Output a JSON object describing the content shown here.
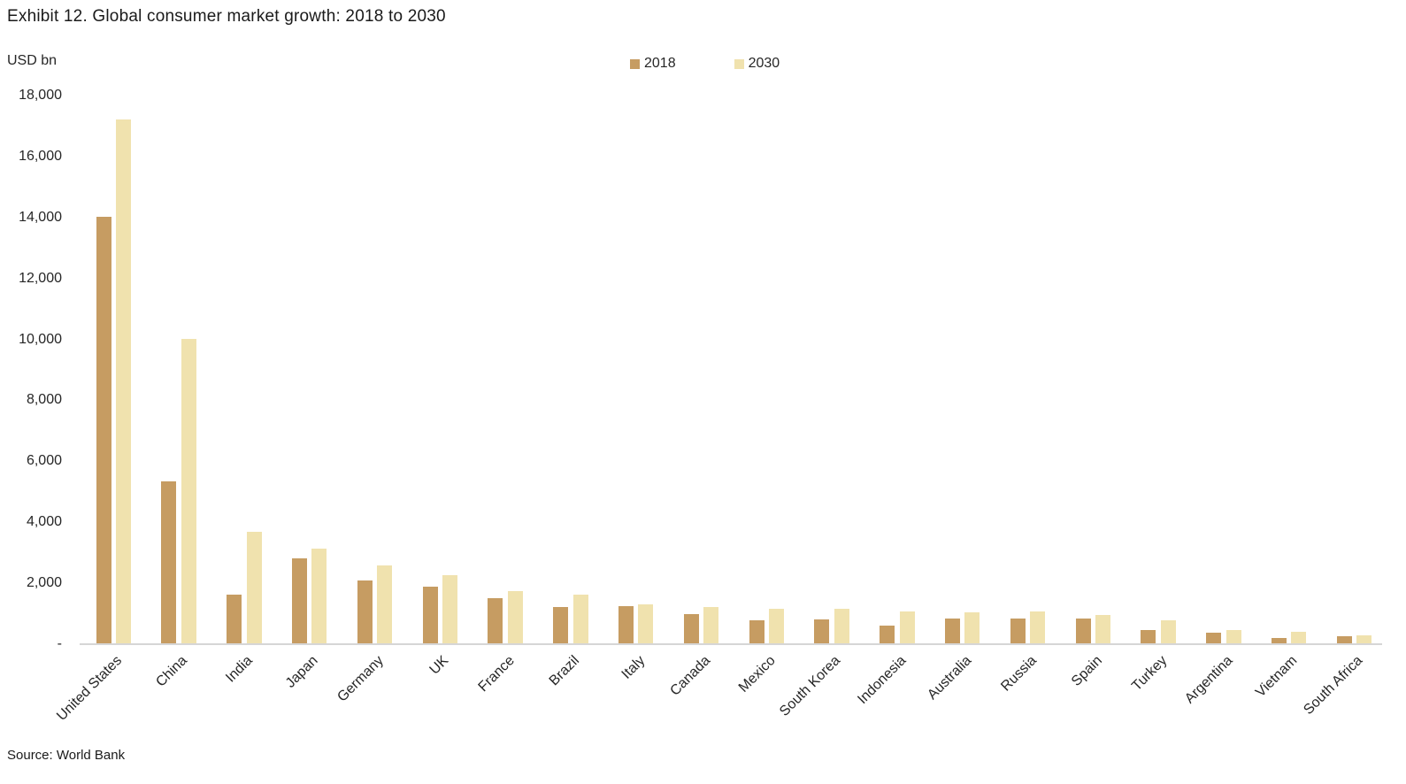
{
  "title": "Exhibit 12. Global consumer market growth: 2018 to 2030",
  "y_axis": {
    "unit_label": "USD bn",
    "ticks": [
      {
        "label": "18,000",
        "value": 18000
      },
      {
        "label": "16,000",
        "value": 16000
      },
      {
        "label": "14,000",
        "value": 14000
      },
      {
        "label": "12,000",
        "value": 12000
      },
      {
        "label": "10,000",
        "value": 10000
      },
      {
        "label": "8,000",
        "value": 8000
      },
      {
        "label": "6,000",
        "value": 6000
      },
      {
        "label": "4,000",
        "value": 4000
      },
      {
        "label": "2,000",
        "value": 2000
      },
      {
        "label": "-",
        "value": 0
      }
    ]
  },
  "legend": [
    {
      "label": "2018",
      "color": "#C69C62"
    },
    {
      "label": "2030",
      "color": "#F0E2AE"
    }
  ],
  "source": "Source: World Bank",
  "colors": {
    "bar_2018": "#C69C62",
    "bar_2030": "#F0E2AE",
    "axis_line": "#D6D6D6",
    "text": "#262626"
  },
  "chart_data": {
    "type": "bar",
    "title": "Exhibit 12. Global consumer market growth: 2018 to 2030",
    "xlabel": "",
    "ylabel": "USD bn",
    "ylim": [
      0,
      18000
    ],
    "y_tick_interval": 2000,
    "grid": false,
    "legend_position": "top-center",
    "categories": [
      "United States",
      "China",
      "India",
      "Japan",
      "Germany",
      "UK",
      "France",
      "Brazil",
      "Italy",
      "Canada",
      "Mexico",
      "South Korea",
      "Indonesia",
      "Australia",
      "Russia",
      "Spain",
      "Turkey",
      "Argentina",
      "Vietnam",
      "South Africa"
    ],
    "series": [
      {
        "name": "2018",
        "color": "#C69C62",
        "values": [
          14000,
          5300,
          1600,
          2800,
          2050,
          1850,
          1480,
          1180,
          1210,
          960,
          770,
          780,
          590,
          810,
          800,
          810,
          430,
          340,
          180,
          220
        ]
      },
      {
        "name": "2030",
        "color": "#F0E2AE",
        "values": [
          17200,
          10000,
          3650,
          3100,
          2550,
          2230,
          1720,
          1590,
          1290,
          1190,
          1120,
          1130,
          1060,
          1030,
          1040,
          920,
          750,
          440,
          380,
          260
        ]
      }
    ]
  }
}
